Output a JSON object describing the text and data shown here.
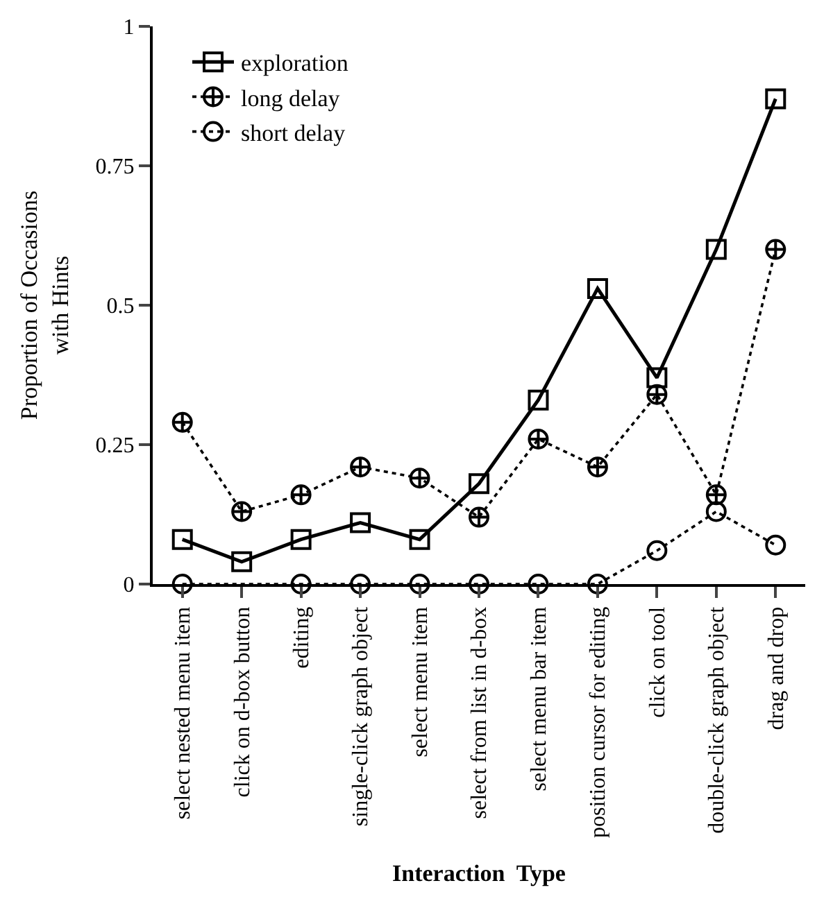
{
  "chart_data": {
    "type": "line",
    "xlabel": "Interaction  Type",
    "ylabel": "Proportion of Occasions\nwith Hints",
    "categories": [
      "select nested menu item",
      "click on d-box button",
      "editing",
      "single-click graph object",
      "select menu item",
      "select from list in d-box",
      "select menu bar item",
      "position cursor for editing",
      "click on tool",
      "double-click graph object",
      "drag and drop"
    ],
    "series": [
      {
        "name": "exploration",
        "color": "#000000",
        "marker": "square",
        "line_style": "solid",
        "values": [
          0.08,
          0.04,
          0.08,
          0.11,
          0.08,
          0.18,
          0.33,
          0.53,
          0.37,
          0.6,
          0.87
        ]
      },
      {
        "name": "long delay",
        "color": "#000000",
        "marker": "cross",
        "line_style": "dotted",
        "values": [
          0.29,
          0.13,
          0.16,
          0.21,
          0.19,
          0.12,
          0.26,
          0.21,
          0.34,
          0.16,
          0.6
        ]
      },
      {
        "name": "short delay",
        "color": "#000000",
        "marker": "circle",
        "line_style": "dotted",
        "values": [
          0,
          null,
          0,
          0,
          0,
          0,
          0,
          0,
          0.06,
          0.13,
          0.07
        ]
      }
    ],
    "ylim": [
      0,
      1
    ],
    "yticks": [
      0,
      0.25,
      0.5,
      0.75,
      1
    ],
    "legend": "top left"
  }
}
